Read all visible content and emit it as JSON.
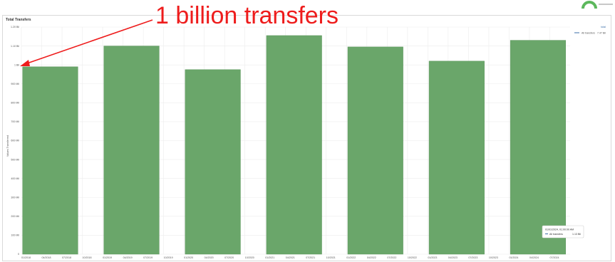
{
  "panel": {
    "title": "Total Transfers"
  },
  "annotation": {
    "text": "1 billion transfers",
    "color": "#ee1c1c"
  },
  "legend": {
    "header": "total",
    "items": [
      {
        "label": "All transfers",
        "value": "7.47 Bil"
      }
    ]
  },
  "tooltip": {
    "time": "01/01/2024, 01:00:00 AM",
    "series_label": "All transfers",
    "value": "1.13 Bil"
  },
  "colors": {
    "bar": "#6aa66a",
    "bar_edge": "#5a945a",
    "grid": "#ececec",
    "annotation": "#ee1c1c",
    "legend_line": "#3b6ea8"
  },
  "chart_data": {
    "type": "bar",
    "title": "Total Transfers",
    "ylabel": "Values Transferred",
    "ylim": [
      0,
      1200
    ],
    "y_ticks": [
      0,
      100,
      200,
      300,
      400,
      500,
      600,
      700,
      800,
      900,
      1000,
      1100,
      1200
    ],
    "y_tick_labels": [
      "0",
      "100 Mil",
      "200 Mil",
      "300 Mil",
      "400 Mil",
      "500 Mil",
      "600 Mil",
      "700 Mil",
      "800 Mil",
      "900 Mil",
      "1 Bil",
      "1.10 Bil",
      "1.20 Bil"
    ],
    "x_tick_labels": [
      "01/2018",
      "04/2018",
      "07/2018",
      "10/2018",
      "01/2019",
      "04/2019",
      "07/2019",
      "10/2019",
      "01/2020",
      "04/2020",
      "07/2020",
      "10/2020",
      "01/2021",
      "04/2021",
      "07/2021",
      "10/2021",
      "01/2022",
      "04/2022",
      "07/2022",
      "10/2022",
      "01/2023",
      "04/2023",
      "07/2023",
      "10/2023",
      "01/2024",
      "04/2024",
      "07/2024"
    ],
    "categories": [
      "2018",
      "2019",
      "2020",
      "2021",
      "2022",
      "2023",
      "2024"
    ],
    "series": [
      {
        "name": "All transfers",
        "values": [
          990,
          1100,
          975,
          1155,
          1095,
          1020,
          1130
        ]
      }
    ],
    "grid": true,
    "legend": "top-right",
    "annotations": [
      "1 billion transfers"
    ]
  }
}
